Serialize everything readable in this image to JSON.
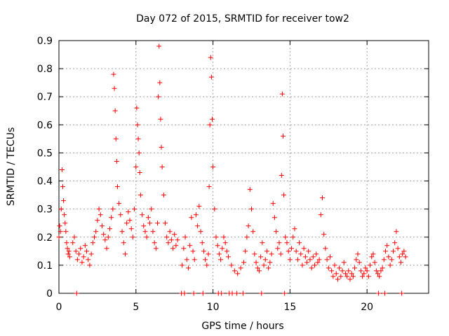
{
  "chart_data": {
    "type": "scatter",
    "title": "Day 072 of 2015, SRMTID for receiver tow2",
    "xlabel": "GPS time / hours",
    "ylabel": "SRMTID / TECUs",
    "xlim": [
      0,
      24
    ],
    "ylim": [
      0,
      0.9
    ],
    "xticks": [
      0,
      5,
      10,
      15,
      20
    ],
    "yticks": [
      0,
      0.1,
      0.2,
      0.3,
      0.4,
      0.5,
      0.6,
      0.7,
      0.8,
      0.9
    ],
    "xtick_labels": [
      "0",
      "5",
      "10",
      "15",
      "20"
    ],
    "ytick_labels": [
      "0",
      "0.1",
      "0.2",
      "0.3",
      "0.4",
      "0.5",
      "0.6",
      "0.7",
      "0.8",
      "0.9"
    ],
    "grid": true,
    "marker": "+",
    "color": "#ff0000",
    "series": [
      {
        "name": "tow2",
        "x": [
          0.0,
          0.05,
          0.1,
          0.15,
          0.2,
          0.25,
          0.3,
          0.35,
          0.4,
          0.45,
          0.5,
          0.55,
          0.6,
          0.65,
          0.7,
          0.9,
          1.0,
          1.1,
          1.2,
          1.3,
          1.4,
          1.5,
          1.6,
          1.7,
          1.8,
          1.9,
          2.0,
          2.1,
          2.2,
          2.3,
          2.4,
          2.5,
          2.6,
          2.7,
          2.8,
          2.9,
          3.0,
          3.1,
          3.2,
          3.3,
          3.4,
          3.5,
          3.55,
          3.6,
          3.65,
          3.7,
          3.75,
          3.8,
          3.9,
          4.0,
          4.1,
          4.2,
          4.3,
          4.4,
          4.5,
          4.6,
          4.7,
          4.8,
          4.9,
          5.0,
          5.05,
          5.1,
          5.15,
          5.2,
          5.25,
          5.3,
          5.4,
          5.5,
          5.6,
          5.7,
          5.8,
          5.9,
          6.0,
          6.1,
          6.2,
          6.3,
          6.4,
          6.45,
          6.5,
          6.55,
          6.6,
          6.65,
          6.7,
          6.8,
          6.9,
          7.0,
          7.1,
          7.2,
          7.3,
          7.4,
          7.5,
          7.6,
          7.7,
          8.0,
          8.1,
          8.2,
          8.3,
          8.4,
          8.5,
          8.6,
          8.7,
          8.8,
          8.9,
          9.0,
          9.1,
          9.2,
          9.3,
          9.4,
          9.5,
          9.6,
          9.7,
          9.75,
          9.8,
          9.85,
          9.9,
          9.95,
          10.0,
          10.1,
          10.2,
          10.3,
          10.4,
          10.5,
          10.6,
          10.7,
          10.8,
          10.9,
          11.0,
          11.2,
          11.4,
          11.6,
          11.8,
          12.0,
          12.1,
          12.2,
          12.3,
          12.4,
          12.5,
          12.6,
          12.7,
          12.8,
          12.9,
          13.0,
          13.1,
          13.2,
          13.3,
          13.4,
          13.5,
          13.6,
          13.7,
          13.8,
          13.9,
          14.0,
          14.1,
          14.2,
          14.3,
          14.4,
          14.45,
          14.5,
          14.55,
          14.6,
          14.7,
          14.8,
          14.9,
          15.0,
          15.1,
          15.2,
          15.3,
          15.4,
          15.5,
          15.6,
          15.7,
          15.8,
          15.9,
          16.0,
          16.1,
          16.2,
          16.3,
          16.4,
          16.5,
          16.6,
          16.7,
          16.8,
          16.9,
          17.0,
          17.1,
          17.2,
          17.3,
          17.4,
          17.5,
          17.6,
          17.7,
          17.8,
          17.9,
          18.0,
          18.1,
          18.2,
          18.3,
          18.4,
          18.5,
          18.6,
          18.7,
          18.8,
          18.9,
          19.0,
          19.1,
          19.2,
          19.3,
          19.4,
          19.5,
          19.6,
          19.7,
          19.8,
          19.9,
          20.0,
          20.1,
          20.2,
          20.3,
          20.4,
          20.5,
          20.6,
          20.7,
          20.8,
          20.9,
          21.0,
          21.1,
          21.2,
          21.3,
          21.4,
          21.5,
          21.6,
          21.7,
          21.8,
          21.9,
          22.0,
          22.1,
          22.2,
          22.3,
          22.4,
          22.5,
          1.15,
          7.95,
          8.15,
          8.75,
          9.35,
          10.35,
          10.55,
          11.05,
          11.25,
          11.55,
          11.95,
          13.15,
          14.65,
          20.75,
          21.15,
          22.25
        ],
        "y": [
          0.2,
          0.24,
          0.22,
          0.3,
          0.44,
          0.38,
          0.33,
          0.28,
          0.25,
          0.22,
          0.18,
          0.16,
          0.14,
          0.15,
          0.13,
          0.18,
          0.2,
          0.15,
          0.12,
          0.14,
          0.16,
          0.11,
          0.13,
          0.17,
          0.15,
          0.12,
          0.1,
          0.14,
          0.18,
          0.2,
          0.22,
          0.26,
          0.3,
          0.28,
          0.24,
          0.21,
          0.19,
          0.16,
          0.2,
          0.23,
          0.27,
          0.3,
          0.78,
          0.73,
          0.65,
          0.55,
          0.47,
          0.38,
          0.32,
          0.28,
          0.22,
          0.18,
          0.14,
          0.25,
          0.29,
          0.26,
          0.23,
          0.2,
          0.3,
          0.45,
          0.66,
          0.6,
          0.55,
          0.5,
          0.43,
          0.35,
          0.28,
          0.24,
          0.22,
          0.2,
          0.27,
          0.25,
          0.3,
          0.22,
          0.18,
          0.16,
          0.25,
          0.7,
          0.88,
          0.75,
          0.62,
          0.52,
          0.45,
          0.35,
          0.25,
          0.2,
          0.18,
          0.22,
          0.19,
          0.16,
          0.21,
          0.17,
          0.19,
          0.1,
          0.16,
          0.2,
          0.12,
          0.09,
          0.17,
          0.27,
          0.15,
          0.12,
          0.28,
          0.24,
          0.31,
          0.22,
          0.18,
          0.15,
          0.12,
          0.1,
          0.14,
          0.38,
          0.6,
          0.84,
          0.77,
          0.62,
          0.45,
          0.3,
          0.2,
          0.17,
          0.14,
          0.12,
          0.16,
          0.2,
          0.18,
          0.15,
          0.13,
          0.1,
          0.08,
          0.07,
          0.09,
          0.11,
          0.15,
          0.2,
          0.24,
          0.37,
          0.3,
          0.22,
          0.14,
          0.11,
          0.09,
          0.08,
          0.13,
          0.18,
          0.1,
          0.12,
          0.15,
          0.09,
          0.11,
          0.14,
          0.32,
          0.27,
          0.22,
          0.16,
          0.18,
          0.14,
          0.42,
          0.71,
          0.56,
          0.35,
          0.2,
          0.18,
          0.15,
          0.12,
          0.16,
          0.2,
          0.23,
          0.15,
          0.12,
          0.18,
          0.14,
          0.1,
          0.16,
          0.13,
          0.11,
          0.15,
          0.12,
          0.09,
          0.13,
          0.1,
          0.14,
          0.11,
          0.12,
          0.28,
          0.34,
          0.21,
          0.16,
          0.12,
          0.09,
          0.13,
          0.08,
          0.06,
          0.1,
          0.07,
          0.05,
          0.09,
          0.06,
          0.08,
          0.11,
          0.07,
          0.06,
          0.08,
          0.05,
          0.07,
          0.06,
          0.09,
          0.12,
          0.14,
          0.11,
          0.08,
          0.06,
          0.07,
          0.09,
          0.08,
          0.06,
          0.1,
          0.13,
          0.14,
          0.11,
          0.08,
          0.07,
          0.06,
          0.08,
          0.09,
          0.12,
          0.15,
          0.17,
          0.13,
          0.1,
          0.12,
          0.15,
          0.18,
          0.22,
          0.16,
          0.13,
          0.11,
          0.14,
          0.15,
          0.13,
          0.0,
          0.0,
          0.0,
          0.0,
          0.0,
          0.0,
          0.0,
          0.0,
          0.0,
          0.0,
          0.0,
          0.0,
          0.0,
          0.0,
          0.0,
          0.0
        ]
      }
    ]
  }
}
